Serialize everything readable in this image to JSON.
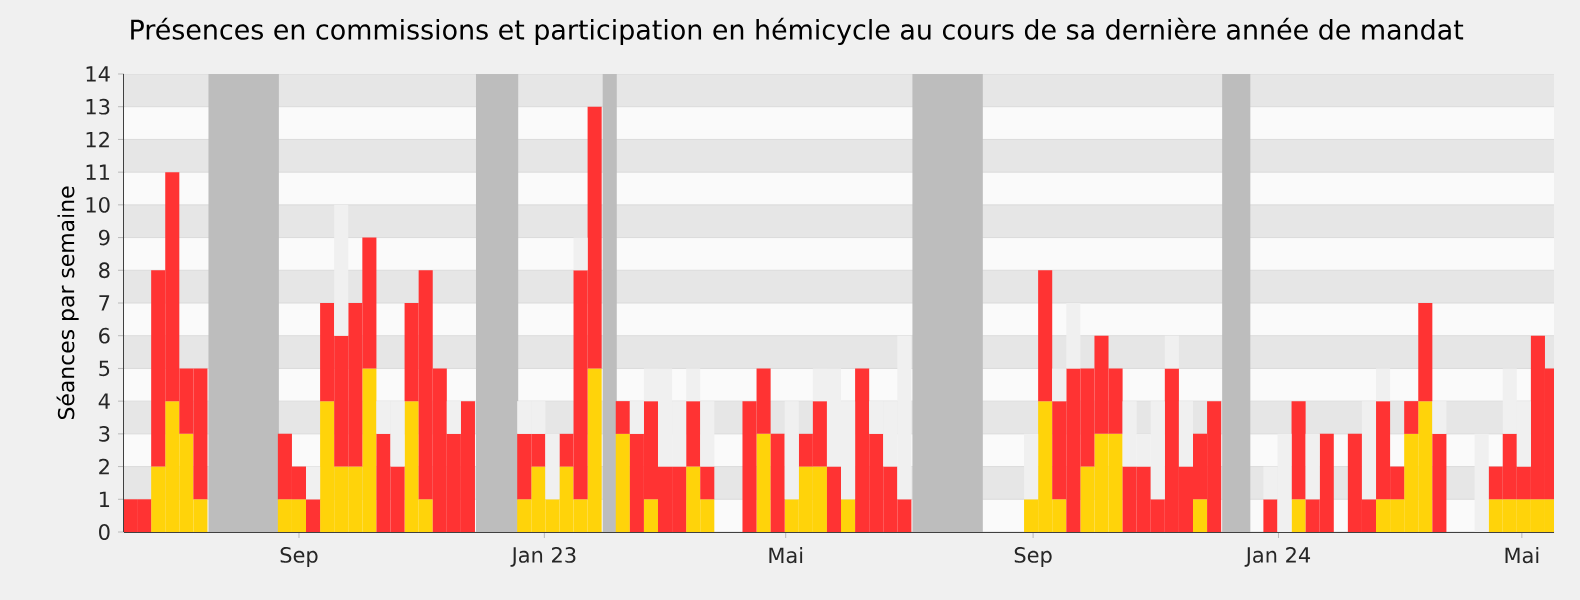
{
  "chart_data": {
    "type": "bar",
    "title": "Présences en commissions et participation en hémicycle au cours de sa dernière année de mandat",
    "ylabel": "Séances par semaine",
    "stacked": true,
    "grid": "y",
    "x": [
      "2022-06-09",
      "2022-06-16",
      "2022-06-23",
      "2022-06-30",
      "2022-07-07",
      "2022-07-14",
      "2022-07-21",
      "2022-07-28",
      "2022-08-04",
      "2022-08-11",
      "2022-08-18",
      "2022-08-25",
      "2022-09-01",
      "2022-09-08",
      "2022-09-15",
      "2022-09-22",
      "2022-09-29",
      "2022-10-06",
      "2022-10-13",
      "2022-10-20",
      "2022-10-27",
      "2022-11-03",
      "2022-11-10",
      "2022-11-17",
      "2022-11-24",
      "2022-12-01",
      "2022-12-08",
      "2022-12-15",
      "2022-12-22",
      "2022-12-29",
      "2023-01-05",
      "2023-01-12",
      "2023-01-19",
      "2023-01-26",
      "2023-02-02",
      "2023-02-09",
      "2023-02-16",
      "2023-02-23",
      "2023-03-02",
      "2023-03-09",
      "2023-03-16",
      "2023-03-23",
      "2023-03-30",
      "2023-04-06",
      "2023-04-13",
      "2023-04-20",
      "2023-04-27",
      "2023-05-04",
      "2023-05-11",
      "2023-05-18",
      "2023-05-25",
      "2023-06-01",
      "2023-06-08",
      "2023-06-15",
      "2023-06-22",
      "2023-06-29",
      "2023-07-06",
      "2023-07-13",
      "2023-07-20",
      "2023-07-27",
      "2023-08-03",
      "2023-08-10",
      "2023-08-17",
      "2023-08-24",
      "2023-08-31",
      "2023-09-07",
      "2023-09-14",
      "2023-09-21",
      "2023-09-28",
      "2023-10-05",
      "2023-10-12",
      "2023-10-19",
      "2023-10-26",
      "2023-11-02",
      "2023-11-09",
      "2023-11-16",
      "2023-11-23",
      "2023-11-30",
      "2023-12-07",
      "2023-12-14",
      "2023-12-21",
      "2023-12-28",
      "2024-01-04",
      "2024-01-11",
      "2024-01-18",
      "2024-01-25",
      "2024-02-01",
      "2024-02-08",
      "2024-02-15",
      "2024-02-22",
      "2024-02-29",
      "2024-03-07",
      "2024-03-14",
      "2024-03-21",
      "2024-03-28",
      "2024-04-04",
      "2024-04-11",
      "2024-04-18",
      "2024-04-25",
      "2024-05-02",
      "2024-05-09",
      "2024-05-16"
    ],
    "series": [
      {
        "color": "#ffd30a",
        "values": [
          null,
          null,
          2,
          4,
          3,
          1,
          null,
          null,
          null,
          null,
          null,
          1,
          1,
          null,
          4,
          2,
          2,
          5,
          null,
          null,
          4,
          1,
          null,
          null,
          null,
          null,
          null,
          null,
          1,
          2,
          1,
          2,
          1,
          5,
          null,
          3,
          null,
          1,
          null,
          null,
          2,
          1,
          null,
          null,
          null,
          3,
          null,
          1,
          2,
          2,
          null,
          1,
          null,
          null,
          null,
          null,
          null,
          null,
          null,
          null,
          null,
          null,
          null,
          null,
          1,
          4,
          1,
          null,
          2,
          3,
          3,
          null,
          null,
          null,
          null,
          null,
          1,
          null,
          null,
          null,
          null,
          null,
          null,
          1,
          null,
          null,
          null,
          null,
          null,
          1,
          1,
          3,
          4,
          null,
          null,
          null,
          null,
          1,
          1,
          1,
          1,
          1
        ]
      },
      {
        "color": "#ff3333",
        "values": [
          1,
          1,
          6,
          7,
          2,
          4,
          null,
          null,
          null,
          null,
          null,
          2,
          1,
          1,
          3,
          4,
          5,
          4,
          3,
          2,
          3,
          7,
          5,
          3,
          4,
          null,
          null,
          null,
          2,
          1,
          null,
          1,
          7,
          8,
          null,
          1,
          3,
          3,
          2,
          2,
          2,
          1,
          null,
          null,
          4,
          2,
          3,
          null,
          1,
          2,
          2,
          null,
          5,
          3,
          2,
          1,
          null,
          null,
          null,
          null,
          null,
          null,
          null,
          null,
          null,
          4,
          3,
          5,
          3,
          3,
          2,
          2,
          2,
          1,
          5,
          2,
          2,
          4,
          null,
          null,
          null,
          1,
          null,
          3,
          1,
          3,
          null,
          3,
          1,
          3,
          1,
          1,
          3,
          3,
          null,
          null,
          null,
          1,
          2,
          1,
          5,
          4
        ]
      },
      {
        "color": "#f0f0f0",
        "values": [
          null,
          null,
          null,
          null,
          null,
          null,
          null,
          null,
          null,
          null,
          null,
          null,
          null,
          1,
          null,
          4,
          null,
          null,
          1,
          2,
          null,
          null,
          null,
          1,
          null,
          null,
          null,
          null,
          1,
          1,
          2,
          null,
          1,
          null,
          null,
          null,
          1,
          1,
          3,
          2,
          1,
          2,
          null,
          null,
          null,
          null,
          null,
          3,
          null,
          1,
          3,
          3,
          null,
          1,
          2,
          5,
          null,
          null,
          null,
          null,
          null,
          null,
          null,
          null,
          2,
          null,
          1,
          2,
          null,
          null,
          null,
          2,
          1,
          3,
          1,
          2,
          null,
          null,
          null,
          null,
          null,
          1,
          3,
          null,
          2,
          null,
          null,
          null,
          3,
          1,
          null,
          null,
          null,
          1,
          null,
          null,
          3,
          null,
          2,
          2,
          null,
          null
        ]
      }
    ],
    "xlim": [
      "2022-06-06",
      "2024-05-17"
    ],
    "ylim": [
      0,
      14
    ],
    "xticks": [
      {
        "value": "2022-09-01",
        "label": "Sep"
      },
      {
        "value": "2023-01-01",
        "label": "Jan 23"
      },
      {
        "value": "2023-05-01",
        "label": "Mai"
      },
      {
        "value": "2023-09-01",
        "label": "Sep"
      },
      {
        "value": "2024-01-01",
        "label": "Jan 24"
      },
      {
        "value": "2024-05-01",
        "label": "Mai"
      }
    ],
    "yticks": [
      0,
      1,
      2,
      3,
      4,
      5,
      6,
      7,
      8,
      9,
      10,
      11,
      12,
      13,
      14
    ],
    "bands": [
      {
        "axis": "x",
        "from": "2022-07-18",
        "to": "2022-08-22",
        "color": "#bdbdbd"
      },
      {
        "axis": "x",
        "from": "2022-11-28",
        "to": "2022-12-19",
        "color": "#bdbdbd"
      },
      {
        "axis": "x",
        "from": "2023-01-30",
        "to": "2023-02-06",
        "color": "#bdbdbd"
      },
      {
        "axis": "x",
        "from": "2023-07-03",
        "to": "2023-08-07",
        "color": "#bdbdbd"
      },
      {
        "axis": "x",
        "from": "2023-12-04",
        "to": "2023-12-18",
        "color": "#bdbdbd"
      }
    ]
  }
}
